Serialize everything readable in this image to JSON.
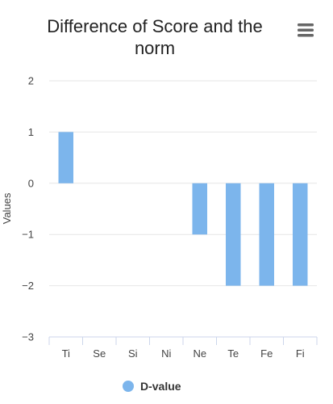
{
  "chart_data": {
    "type": "bar",
    "title": "Difference of Score and the norm",
    "title_lines": [
      "Difference of Score and the",
      "norm"
    ],
    "xlabel": "",
    "ylabel": "Values",
    "categories": [
      "Ti",
      "Se",
      "Si",
      "Ni",
      "Ne",
      "Te",
      "Fe",
      "Fi"
    ],
    "series": [
      {
        "name": "D-value",
        "color": "#7cb5ec",
        "values": [
          1,
          0,
          0,
          0,
          -1,
          -2,
          -2,
          -2
        ]
      }
    ],
    "ylim": [
      -3,
      2
    ],
    "yticks": [
      2,
      1,
      0,
      -1,
      -2,
      -3
    ],
    "ytick_labels": [
      "2",
      "1",
      "0",
      "−1",
      "−2",
      "−3"
    ],
    "grid": true,
    "legend": {
      "position": "bottom-center",
      "label": "D‑value"
    },
    "menu_icon": "hamburger-menu-icon"
  }
}
